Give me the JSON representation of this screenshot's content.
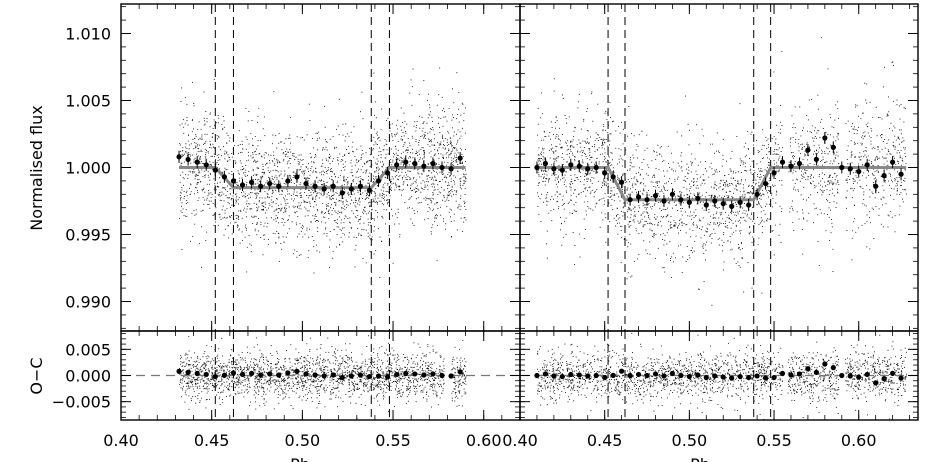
{
  "chart_data": [
    {
      "type": "scatter",
      "panel": "top-left",
      "ylabel": "Normalised flux",
      "xlim": [
        0.4,
        0.62
      ],
      "ylim": [
        0.9878,
        1.0122
      ],
      "xticks": [
        0.4,
        0.45,
        0.5,
        0.55,
        0.6
      ],
      "yticks": [
        0.99,
        0.995,
        1.0,
        1.005,
        1.01
      ],
      "ytick_labels": [
        "0.990",
        "0.995",
        "1.000",
        "1.005",
        "1.010"
      ],
      "data_range": [
        0.432,
        0.59
      ],
      "contact_markers": [
        0.452,
        0.462,
        0.538,
        0.548
      ],
      "model": {
        "x": [
          0.432,
          0.452,
          0.462,
          0.538,
          0.548,
          0.59
        ],
        "y": [
          1.0,
          1.0,
          0.9985,
          0.9985,
          1.0,
          1.0
        ]
      },
      "binned_series": {
        "x": [
          0.432,
          0.437,
          0.442,
          0.447,
          0.452,
          0.457,
          0.462,
          0.467,
          0.472,
          0.477,
          0.482,
          0.487,
          0.492,
          0.497,
          0.502,
          0.507,
          0.512,
          0.517,
          0.522,
          0.527,
          0.532,
          0.537,
          0.542,
          0.547,
          0.552,
          0.557,
          0.562,
          0.567,
          0.572,
          0.577,
          0.582,
          0.587
        ],
        "y": [
          1.0008,
          1.0006,
          1.0004,
          1.0002,
          0.9998,
          0.9993,
          0.999,
          0.9987,
          0.9989,
          0.9986,
          0.9988,
          0.9986,
          0.999,
          0.9993,
          0.9988,
          0.9986,
          0.9984,
          0.9986,
          0.9981,
          0.9984,
          0.9986,
          0.9983,
          0.999,
          0.9996,
          1.0002,
          1.0004,
          1.0003,
          1.0001,
          1.0003,
          1.0,
          0.9999,
          1.0007
        ]
      }
    },
    {
      "type": "scatter",
      "panel": "top-right",
      "xlim": [
        0.4,
        0.635
      ],
      "ylim": [
        0.9878,
        1.0122
      ],
      "xticks": [
        0.4,
        0.45,
        0.5,
        0.55,
        0.6
      ],
      "data_range": [
        0.41,
        0.628
      ],
      "contact_markers": [
        0.452,
        0.462,
        0.538,
        0.548
      ],
      "model": {
        "x": [
          0.41,
          0.452,
          0.462,
          0.538,
          0.548,
          0.628
        ],
        "y": [
          1.0,
          1.0,
          0.9976,
          0.9976,
          1.0,
          1.0
        ]
      },
      "binned_series": {
        "x": [
          0.41,
          0.415,
          0.42,
          0.425,
          0.43,
          0.435,
          0.44,
          0.445,
          0.45,
          0.455,
          0.46,
          0.465,
          0.47,
          0.475,
          0.48,
          0.485,
          0.49,
          0.495,
          0.5,
          0.505,
          0.51,
          0.515,
          0.52,
          0.525,
          0.53,
          0.535,
          0.54,
          0.545,
          0.55,
          0.555,
          0.56,
          0.565,
          0.57,
          0.575,
          0.58,
          0.585,
          0.59,
          0.595,
          0.6,
          0.605,
          0.61,
          0.615,
          0.62,
          0.625
        ],
        "y": [
          1.0,
          1.0003,
          0.9999,
          0.9998,
          1.0002,
          1.0001,
          0.9999,
          1.0,
          0.9996,
          0.9993,
          0.9989,
          0.9976,
          0.9978,
          0.9976,
          0.9979,
          0.9975,
          0.998,
          0.9976,
          0.9974,
          0.9977,
          0.9972,
          0.9975,
          0.9973,
          0.9971,
          0.9974,
          0.9972,
          0.998,
          0.9988,
          0.9996,
          1.0004,
          1.0001,
          1.0003,
          1.0013,
          1.0006,
          1.0022,
          1.0015,
          1.0,
          0.9999,
          0.9997,
          1.0002,
          0.9986,
          0.9994,
          1.0004,
          0.9995
        ]
      }
    },
    {
      "type": "scatter",
      "panel": "bottom-left",
      "ylabel": "O−C",
      "xlabel": "Ph",
      "xlim": [
        0.4,
        0.62
      ],
      "ylim": [
        -0.0085,
        0.0085
      ],
      "xticks": [
        0.4,
        0.45,
        0.5,
        0.55,
        0.6
      ],
      "xtick_labels": [
        "0.40",
        "0.45",
        "0.50",
        "0.55",
        "0.60"
      ],
      "yticks": [
        -0.005,
        0.0,
        0.005
      ],
      "ytick_labels": [
        "−0.005",
        "0.000",
        "0.005"
      ],
      "zero_line": 0.0,
      "data_range": [
        0.432,
        0.59
      ]
    },
    {
      "type": "scatter",
      "panel": "bottom-right",
      "xlabel": "Ph",
      "xlim": [
        0.4,
        0.635
      ],
      "ylim": [
        -0.0085,
        0.0085
      ],
      "xticks": [
        0.4,
        0.45,
        0.5,
        0.55,
        0.6
      ],
      "xtick_labels": [
        "0.40",
        "0.45",
        "0.50",
        "0.55",
        "0.60"
      ],
      "zero_line": 0.0,
      "data_range": [
        0.41,
        0.628
      ]
    }
  ],
  "styles": {
    "point_color": "#000000",
    "model_color": "#888888",
    "marker_line_color": "#000000",
    "zero_line_color": "#777777",
    "frame_color": "#000000"
  }
}
